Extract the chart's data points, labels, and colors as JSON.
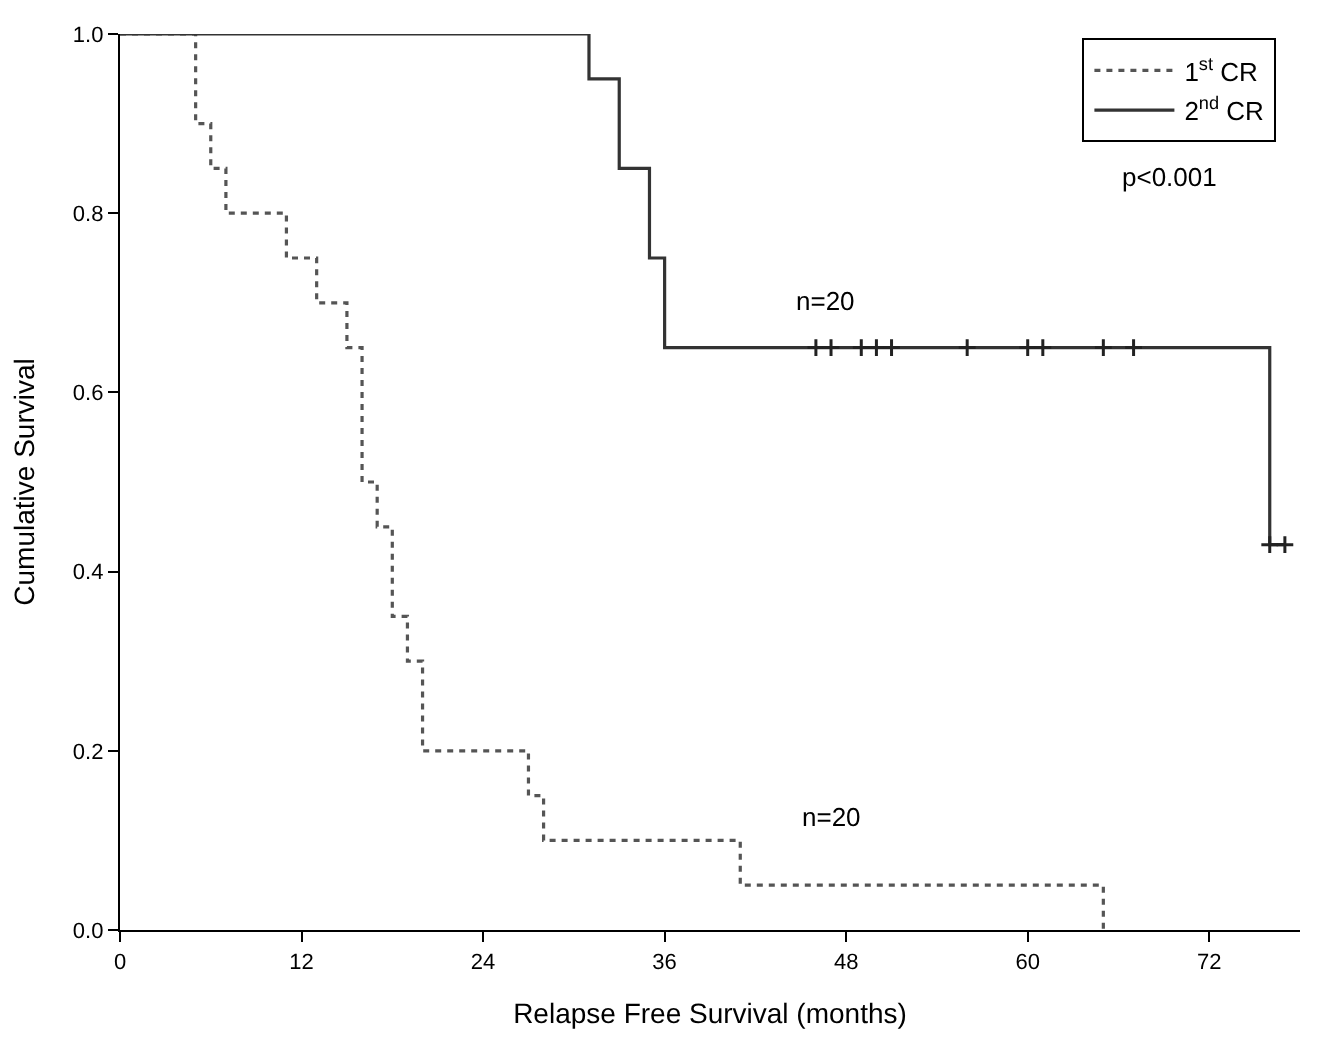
{
  "chart_data": {
    "type": "step",
    "xlabel": "Relapse Free Survival (months)",
    "ylabel": "Cumulative Survival",
    "xlim": [
      0,
      78
    ],
    "xticks": [
      0,
      12,
      24,
      36,
      48,
      60,
      72
    ],
    "ylim": [
      0,
      1
    ],
    "yticks": [
      {
        "value": 0,
        "label": "0.0"
      },
      {
        "value": 0.2,
        "label": "0.2"
      },
      {
        "value": 0.4,
        "label": "0.4"
      },
      {
        "value": 0.6,
        "label": "0.6"
      },
      {
        "value": 0.8,
        "label": "0.8"
      },
      {
        "value": 1,
        "label": "1.0"
      }
    ],
    "series": [
      {
        "name": "1$^{st}$ CR",
        "color": "#555555",
        "line_style": "dotted",
        "x": [
          0,
          5,
          6,
          7,
          11,
          13,
          15,
          16,
          17,
          18,
          19,
          20,
          27,
          28,
          41,
          65
        ],
        "values": [
          1.0,
          0.9,
          0.85,
          0.8,
          0.75,
          0.7,
          0.65,
          0.5,
          0.45,
          0.35,
          0.3,
          0.2,
          0.15,
          0.1,
          0.05,
          0.0
        ]
      },
      {
        "name": "2$^{nd}$ CR",
        "color": "#333333",
        "line_style": "solid",
        "x": [
          0,
          31,
          33,
          35,
          36,
          76,
          77
        ],
        "values": [
          1.0,
          0.95,
          0.85,
          0.75,
          0.65,
          0.43,
          0.43
        ]
      },
      {
        "type": "scatter",
        "marker": "cross",
        "color": "#222222",
        "x": [
          46,
          47,
          49,
          50,
          51,
          56,
          60,
          61,
          65,
          67,
          76,
          77
        ],
        "values": [
          0.65,
          0.65,
          0.65,
          0.65,
          0.65,
          0.65,
          0.65,
          0.65,
          0.65,
          0.65,
          0.43,
          0.43
        ]
      }
    ],
    "annotations": [
      "p<0.001",
      "n=20",
      "n=20"
    ],
    "legend": "top right"
  }
}
